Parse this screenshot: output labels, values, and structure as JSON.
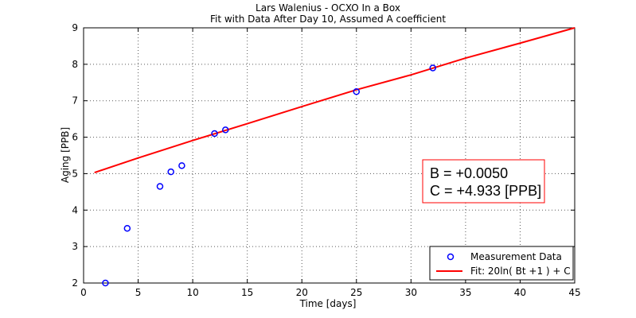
{
  "chart_data": {
    "type": "scatter",
    "title": "Lars Walenius - OCXO In a Box",
    "subtitle": "Fit with Data After Day 10, Assumed A coefficient",
    "xlabel": "Time [days]",
    "ylabel": "Aging [PPB]",
    "xlim": [
      0,
      45
    ],
    "ylim": [
      2,
      9
    ],
    "x_ticks": [
      0,
      5,
      10,
      15,
      20,
      25,
      30,
      35,
      40,
      45
    ],
    "y_ticks": [
      2,
      3,
      4,
      5,
      6,
      7,
      8,
      9
    ],
    "grid": true,
    "series": [
      {
        "name": "Measurement Data",
        "kind": "scatter",
        "color": "#0000ff",
        "marker": "circle",
        "points": [
          {
            "x": 2,
            "y": 2.0
          },
          {
            "x": 4,
            "y": 3.5
          },
          {
            "x": 7,
            "y": 4.65
          },
          {
            "x": 8,
            "y": 5.05
          },
          {
            "x": 9,
            "y": 5.22
          },
          {
            "x": 12,
            "y": 6.1
          },
          {
            "x": 13,
            "y": 6.2
          },
          {
            "x": 25,
            "y": 7.25
          },
          {
            "x": 32,
            "y": 7.9
          }
        ]
      },
      {
        "name": "Fit: 20ln( Bt +1 ) + C",
        "kind": "line",
        "color": "#ff0000",
        "points": [
          {
            "x": 1,
            "y": 5.03
          },
          {
            "x": 5,
            "y": 5.43
          },
          {
            "x": 10,
            "y": 5.91
          },
          {
            "x": 15,
            "y": 6.37
          },
          {
            "x": 20,
            "y": 6.84
          },
          {
            "x": 25,
            "y": 7.3
          },
          {
            "x": 30,
            "y": 7.71
          },
          {
            "x": 35,
            "y": 8.17
          },
          {
            "x": 40,
            "y": 8.58
          },
          {
            "x": 45,
            "y": 9.0
          }
        ]
      }
    ],
    "legend": {
      "placement": "bottom-right",
      "entries": [
        "Measurement Data",
        "Fit: 20ln( Bt +1 ) + C"
      ]
    },
    "annotation": {
      "lines": [
        "B = +0.0050",
        "C = +4.933 [PPB]"
      ],
      "placement": "right-middle",
      "border_color": "#ff0000"
    }
  }
}
